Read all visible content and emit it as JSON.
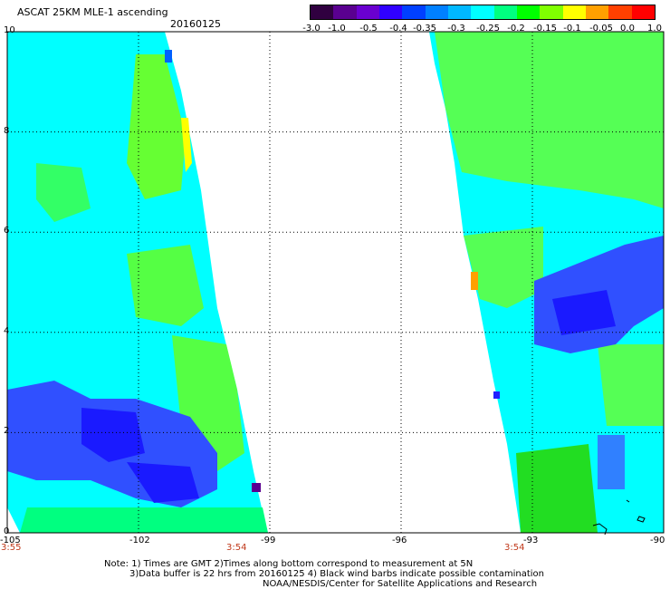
{
  "title": "ASCAT 25KM MLE-1 ascending",
  "date": "20160125",
  "colorbar": {
    "labels": [
      "-3.0",
      "-1.0",
      "-0.5",
      "-0.4",
      "-0.35",
      "-0.3",
      "-0.25",
      "-0.2",
      "-0.15",
      "-0.1",
      "-0.05",
      "0.0",
      "1.0"
    ],
    "colors": [
      "#300040",
      "#5a0090",
      "#6a00d0",
      "#3000ff",
      "#0040ff",
      "#0080ff",
      "#00b8ff",
      "#00ffff",
      "#00ff80",
      "#00ff00",
      "#80ff00",
      "#ffff00",
      "#ffa000",
      "#ff4000",
      "#ff0000"
    ]
  },
  "map": {
    "lon_range": [
      -105,
      -90
    ],
    "lat_range": [
      0,
      10
    ],
    "x_ticks": [
      "-105",
      "-102",
      "-99",
      "-96",
      "-93",
      "-90"
    ],
    "y_ticks": [
      "0",
      "2",
      "4",
      "6",
      "8",
      "10"
    ]
  },
  "times": {
    "left_start": "3:55",
    "left_end": "3:54",
    "right_start": "3:54"
  },
  "notes": [
    "Note: 1) Times are GMT 2)Times along bottom correspond to measurement at 5N",
    "3)Data buffer is 22 hrs from 20160125 4) Black wind barbs indicate possible contamination",
    "NOAA/NESDIS/Center for Satellite Applications and Research"
  ]
}
